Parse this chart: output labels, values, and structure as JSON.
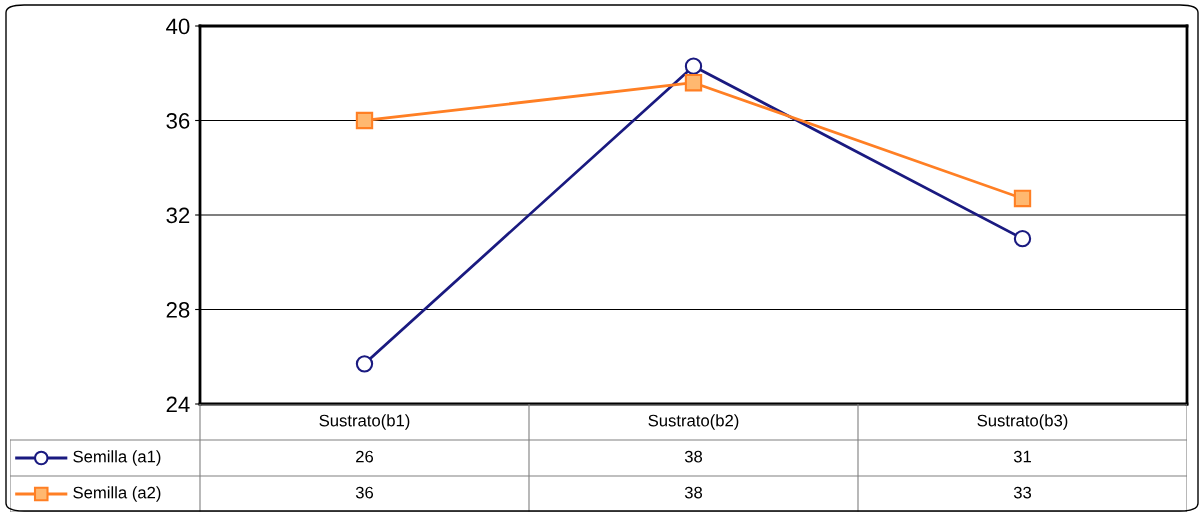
{
  "chart_data": {
    "type": "line",
    "categories": [
      "Sustrato(b1)",
      "Sustrato(b2)",
      "Sustrato(b3)"
    ],
    "series": [
      {
        "name": "Semilla (a1)",
        "color": "#1a1a80",
        "marker": "circle",
        "values": [
          25.7,
          38.3,
          31.0
        ],
        "value_labels": [
          "26",
          "38",
          "31"
        ]
      },
      {
        "name": "Semilla (a2)",
        "color": "#ff7f24",
        "marker": "square",
        "values": [
          36.0,
          37.6,
          32.7
        ],
        "value_labels": [
          "36",
          "38",
          "33"
        ]
      }
    ],
    "ylim": [
      24,
      40
    ],
    "yticks": [
      24,
      28,
      32,
      36,
      40
    ],
    "grid": "y",
    "legend": "bottom left"
  }
}
